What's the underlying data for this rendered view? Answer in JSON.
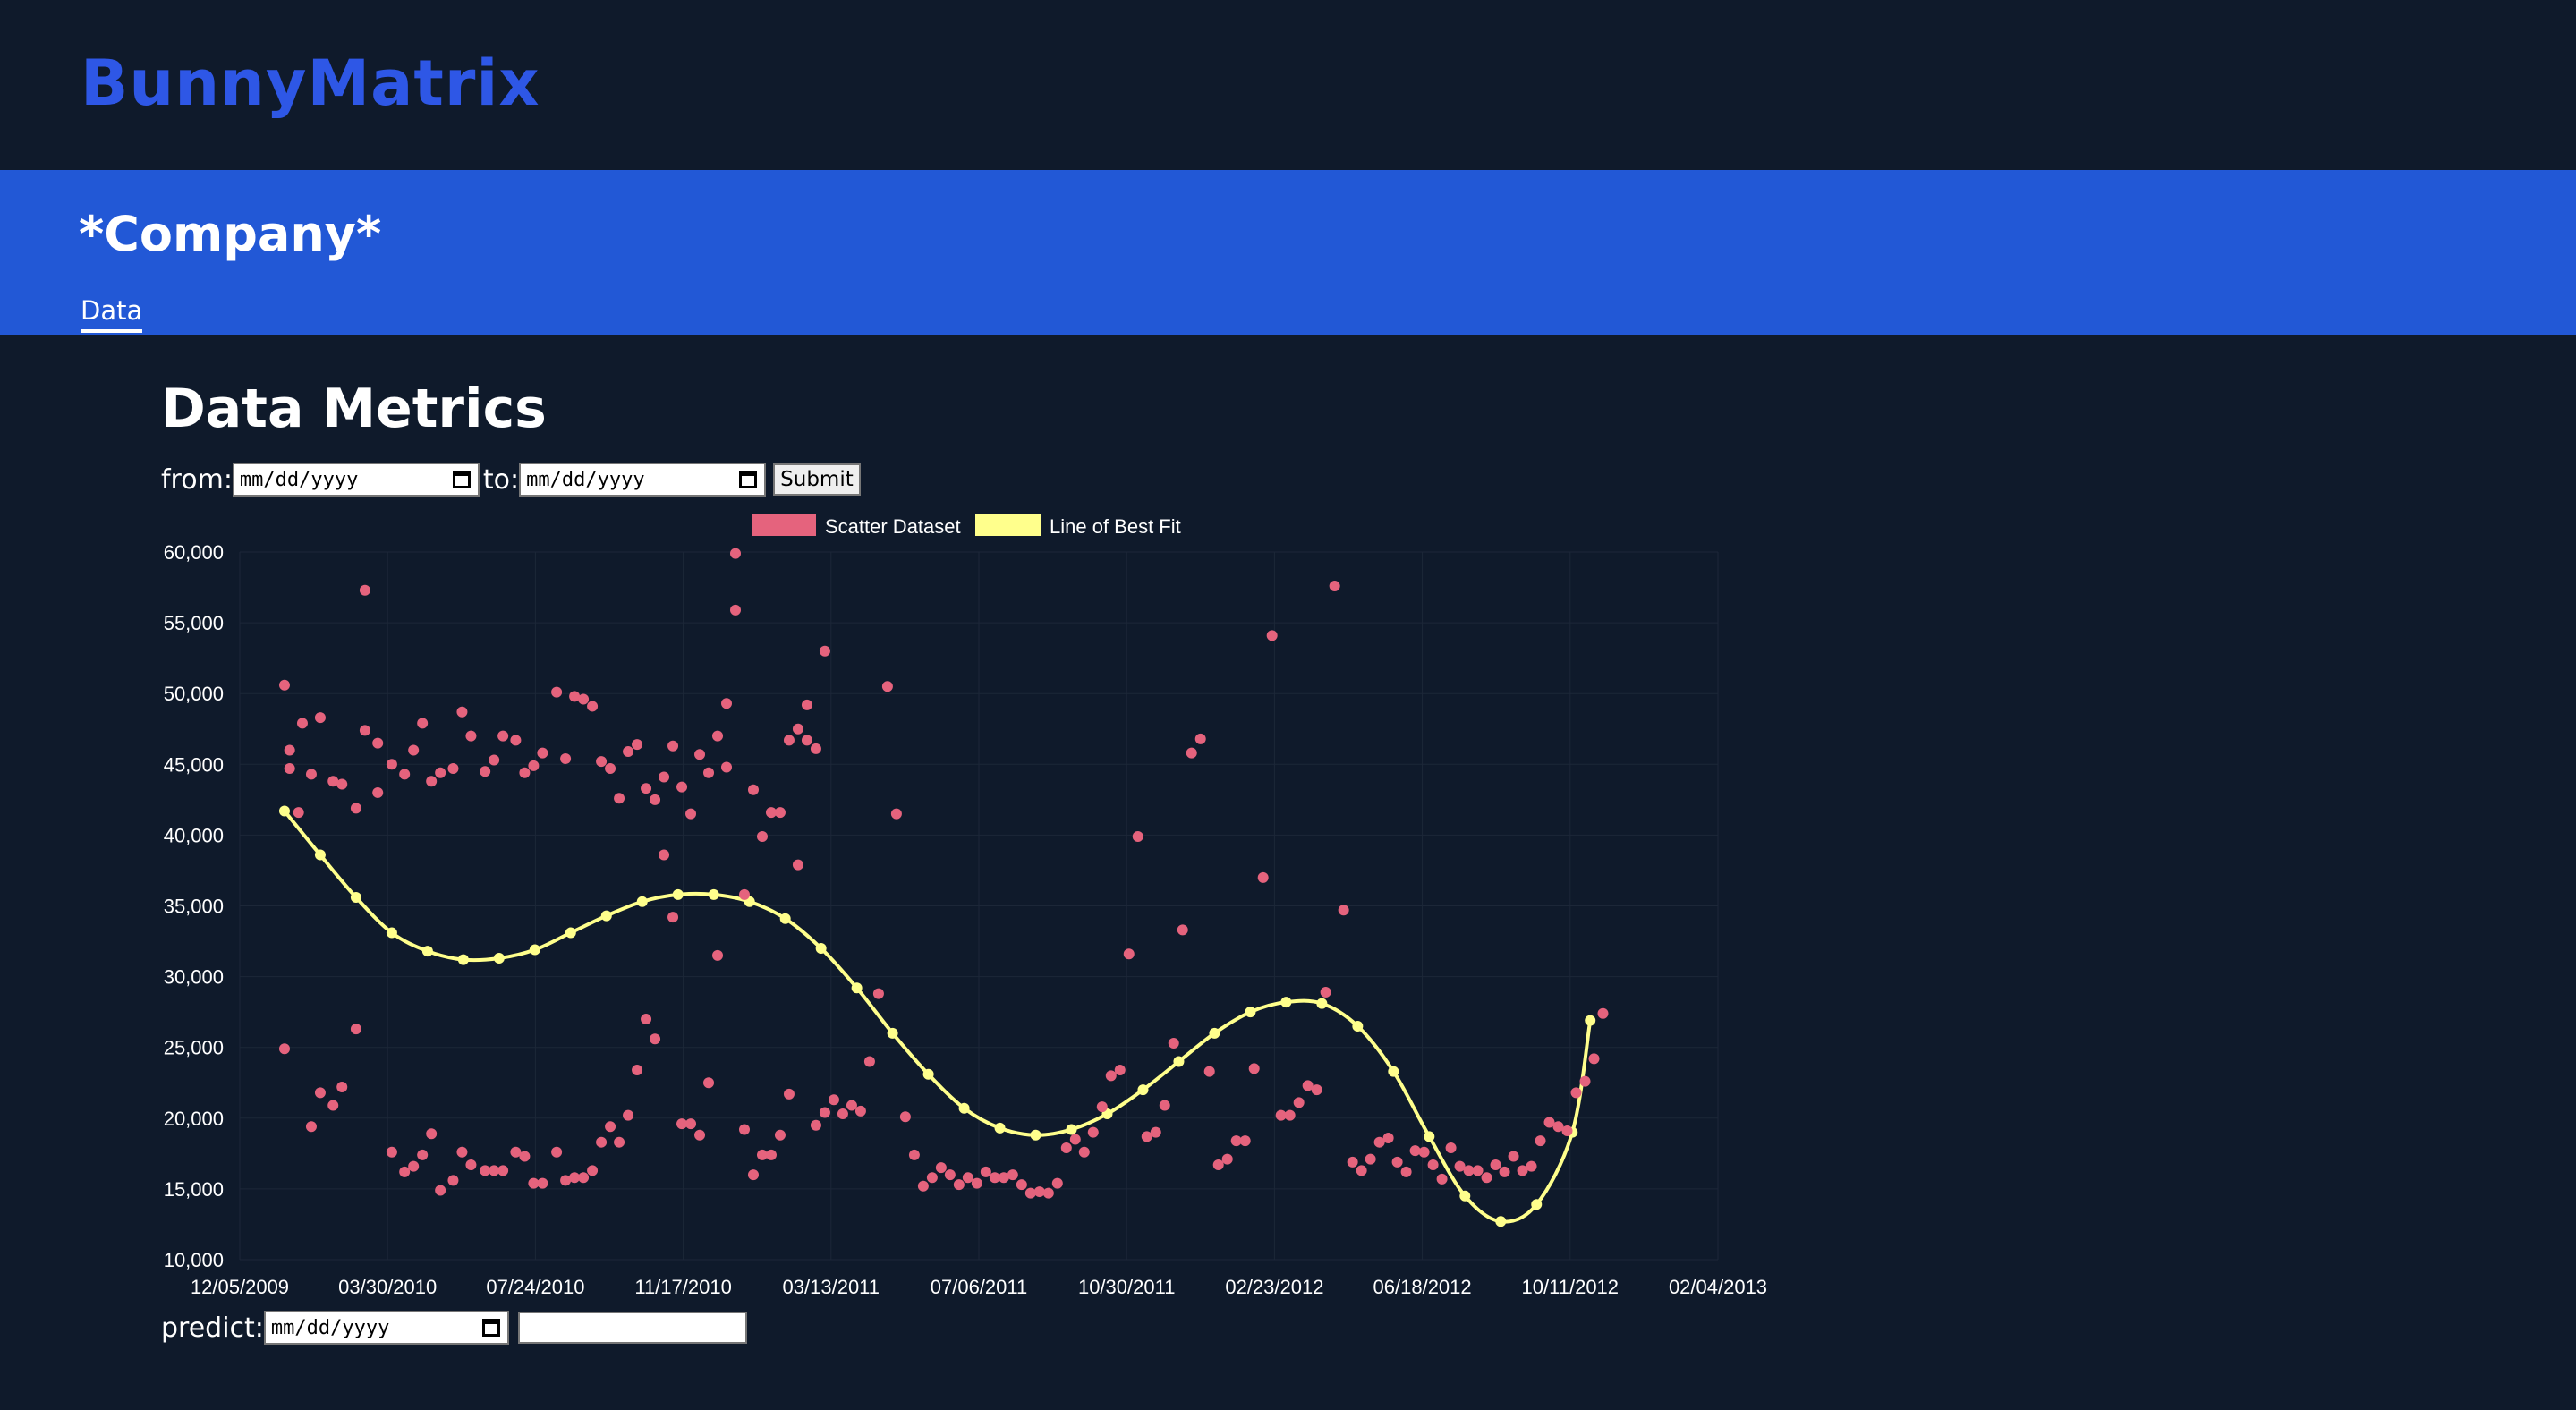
{
  "app": {
    "brand": "BunnyMatrix"
  },
  "banner": {
    "company": "*Company*",
    "tab_data": "Data"
  },
  "main": {
    "heading": "Data Metrics",
    "from_label": "from:",
    "to_label": "to:",
    "date_placeholder": "mm/dd/yyyy",
    "submit_label": "Submit",
    "predict_label": "predict:",
    "predict_value": ""
  },
  "icons": {
    "calendar": "calendar-icon"
  },
  "colors": {
    "brand": "#2e57e6",
    "banner": "#2258d6",
    "background": "#0f1a2b",
    "scatter": "#e5637d",
    "fit": "#ffff8c"
  },
  "chart_data": {
    "type": "scatter",
    "legend": {
      "position": "top-center",
      "entries": [
        "Scatter Dataset",
        "Line of Best Fit"
      ]
    },
    "x_axis": {
      "type": "date",
      "ticks": [
        "12/05/2009",
        "03/30/2010",
        "07/24/2010",
        "11/17/2010",
        "03/13/2011",
        "07/06/2011",
        "10/30/2011",
        "02/23/2012",
        "06/18/2012",
        "10/11/2012",
        "02/04/2013"
      ],
      "range": [
        "2009-12-05",
        "2013-02-04"
      ]
    },
    "y_axis": {
      "ticks": [
        "10,000",
        "15,000",
        "20,000",
        "25,000",
        "30,000",
        "35,000",
        "40,000",
        "45,000",
        "50,000",
        "55,000",
        "60,000"
      ],
      "range": [
        10000,
        60000
      ]
    },
    "grid": true,
    "series": [
      {
        "name": "Scatter Dataset",
        "color": "#e5637d",
        "points": [
          [
            "2010-01-09",
            50600
          ],
          [
            "2010-01-09",
            24900
          ],
          [
            "2010-01-13",
            46000
          ],
          [
            "2010-01-13",
            44700
          ],
          [
            "2010-01-20",
            41600
          ],
          [
            "2010-01-23",
            47900
          ],
          [
            "2010-01-30",
            44300
          ],
          [
            "2010-01-30",
            19400
          ],
          [
            "2010-02-06",
            48300
          ],
          [
            "2010-02-06",
            21800
          ],
          [
            "2010-02-16",
            43800
          ],
          [
            "2010-02-16",
            20900
          ],
          [
            "2010-02-23",
            43600
          ],
          [
            "2010-02-23",
            22200
          ],
          [
            "2010-03-06",
            41900
          ],
          [
            "2010-03-06",
            26300
          ],
          [
            "2010-03-13",
            47400
          ],
          [
            "2010-03-13",
            57300
          ],
          [
            "2010-03-23",
            46500
          ],
          [
            "2010-03-23",
            43000
          ],
          [
            "2010-04-03",
            45000
          ],
          [
            "2010-04-03",
            17600
          ],
          [
            "2010-04-13",
            44300
          ],
          [
            "2010-04-13",
            16200
          ],
          [
            "2010-04-20",
            46000
          ],
          [
            "2010-04-20",
            16600
          ],
          [
            "2010-04-27",
            47900
          ],
          [
            "2010-04-27",
            17400
          ],
          [
            "2010-05-04",
            43800
          ],
          [
            "2010-05-04",
            18900
          ],
          [
            "2010-05-11",
            44400
          ],
          [
            "2010-05-11",
            14900
          ],
          [
            "2010-05-21",
            44700
          ],
          [
            "2010-05-21",
            15600
          ],
          [
            "2010-05-28",
            48700
          ],
          [
            "2010-05-28",
            17600
          ],
          [
            "2010-06-04",
            47000
          ],
          [
            "2010-06-04",
            16700
          ],
          [
            "2010-06-15",
            44500
          ],
          [
            "2010-06-15",
            16300
          ],
          [
            "2010-06-22",
            45300
          ],
          [
            "2010-06-22",
            16300
          ],
          [
            "2010-06-29",
            47000
          ],
          [
            "2010-06-29",
            16300
          ],
          [
            "2010-07-09",
            46700
          ],
          [
            "2010-07-09",
            17600
          ],
          [
            "2010-07-16",
            44400
          ],
          [
            "2010-07-16",
            17300
          ],
          [
            "2010-07-23",
            44900
          ],
          [
            "2010-07-23",
            15400
          ],
          [
            "2010-07-30",
            45800
          ],
          [
            "2010-07-30",
            15400
          ],
          [
            "2010-08-10",
            50100
          ],
          [
            "2010-08-10",
            17600
          ],
          [
            "2010-08-17",
            45400
          ],
          [
            "2010-08-17",
            15600
          ],
          [
            "2010-08-24",
            49800
          ],
          [
            "2010-08-24",
            15800
          ],
          [
            "2010-08-31",
            49600
          ],
          [
            "2010-08-31",
            15800
          ],
          [
            "2010-09-07",
            49100
          ],
          [
            "2010-09-07",
            16300
          ],
          [
            "2010-09-14",
            45200
          ],
          [
            "2010-09-14",
            18300
          ],
          [
            "2010-09-21",
            44700
          ],
          [
            "2010-09-21",
            19400
          ],
          [
            "2010-09-28",
            42600
          ],
          [
            "2010-09-28",
            18300
          ],
          [
            "2010-10-05",
            45900
          ],
          [
            "2010-10-05",
            20200
          ],
          [
            "2010-10-12",
            46400
          ],
          [
            "2010-10-12",
            23400
          ],
          [
            "2010-10-19",
            43300
          ],
          [
            "2010-10-19",
            27000
          ],
          [
            "2010-10-26",
            42500
          ],
          [
            "2010-10-26",
            25600
          ],
          [
            "2010-11-02",
            44100
          ],
          [
            "2010-11-02",
            38600
          ],
          [
            "2010-11-09",
            46300
          ],
          [
            "2010-11-09",
            34200
          ],
          [
            "2010-11-16",
            43400
          ],
          [
            "2010-11-16",
            19600
          ],
          [
            "2010-11-23",
            41500
          ],
          [
            "2010-11-23",
            19600
          ],
          [
            "2010-11-30",
            45700
          ],
          [
            "2010-11-30",
            18800
          ],
          [
            "2010-12-07",
            44400
          ],
          [
            "2010-12-07",
            22500
          ],
          [
            "2010-12-14",
            47000
          ],
          [
            "2010-12-14",
            31500
          ],
          [
            "2010-12-21",
            49300
          ],
          [
            "2010-12-21",
            44800
          ],
          [
            "2010-12-28",
            55900
          ],
          [
            "2010-12-28",
            59900
          ],
          [
            "2011-01-04",
            35800
          ],
          [
            "2011-01-04",
            19200
          ],
          [
            "2011-01-11",
            43200
          ],
          [
            "2011-01-11",
            16000
          ],
          [
            "2011-01-18",
            39900
          ],
          [
            "2011-01-18",
            17400
          ],
          [
            "2011-01-25",
            41600
          ],
          [
            "2011-01-25",
            17400
          ],
          [
            "2011-02-01",
            41600
          ],
          [
            "2011-02-01",
            18800
          ],
          [
            "2011-02-08",
            46700
          ],
          [
            "2011-02-08",
            21700
          ],
          [
            "2011-02-15",
            47500
          ],
          [
            "2011-02-15",
            37900
          ],
          [
            "2011-02-22",
            46700
          ],
          [
            "2011-02-22",
            49200
          ],
          [
            "2011-03-01",
            46100
          ],
          [
            "2011-03-01",
            19500
          ],
          [
            "2011-03-08",
            53000
          ],
          [
            "2011-03-08",
            20400
          ],
          [
            "2011-03-15",
            21300
          ],
          [
            "2011-03-22",
            20300
          ],
          [
            "2011-03-29",
            20900
          ],
          [
            "2011-04-05",
            20500
          ],
          [
            "2011-04-12",
            24000
          ],
          [
            "2011-04-19",
            28800
          ],
          [
            "2011-04-26",
            50500
          ],
          [
            "2011-05-03",
            41500
          ],
          [
            "2011-05-10",
            20100
          ],
          [
            "2011-05-17",
            17400
          ],
          [
            "2011-05-24",
            15200
          ],
          [
            "2011-05-31",
            15800
          ],
          [
            "2011-06-07",
            16500
          ],
          [
            "2011-06-14",
            16000
          ],
          [
            "2011-06-21",
            15300
          ],
          [
            "2011-06-28",
            15800
          ],
          [
            "2011-07-05",
            15400
          ],
          [
            "2011-07-12",
            16200
          ],
          [
            "2011-07-19",
            15800
          ],
          [
            "2011-07-26",
            15800
          ],
          [
            "2011-08-02",
            16000
          ],
          [
            "2011-08-09",
            15300
          ],
          [
            "2011-08-16",
            14700
          ],
          [
            "2011-08-23",
            14800
          ],
          [
            "2011-08-30",
            14700
          ],
          [
            "2011-09-06",
            15400
          ],
          [
            "2011-09-13",
            17900
          ],
          [
            "2011-09-20",
            18500
          ],
          [
            "2011-09-27",
            17600
          ],
          [
            "2011-10-04",
            19000
          ],
          [
            "2011-10-11",
            20800
          ],
          [
            "2011-10-18",
            23000
          ],
          [
            "2011-10-25",
            23400
          ],
          [
            "2011-11-01",
            31600
          ],
          [
            "2011-11-08",
            39900
          ],
          [
            "2011-11-15",
            18700
          ],
          [
            "2011-11-22",
            19000
          ],
          [
            "2011-11-29",
            20900
          ],
          [
            "2011-12-06",
            25300
          ],
          [
            "2011-12-13",
            33300
          ],
          [
            "2011-12-20",
            45800
          ],
          [
            "2011-12-27",
            46800
          ],
          [
            "2012-01-03",
            23300
          ],
          [
            "2012-01-10",
            16700
          ],
          [
            "2012-01-17",
            17100
          ],
          [
            "2012-01-24",
            18400
          ],
          [
            "2012-01-31",
            18400
          ],
          [
            "2012-02-07",
            23500
          ],
          [
            "2012-02-14",
            37000
          ],
          [
            "2012-02-21",
            54100
          ],
          [
            "2012-02-28",
            20200
          ],
          [
            "2012-03-06",
            20200
          ],
          [
            "2012-03-13",
            21100
          ],
          [
            "2012-03-20",
            22300
          ],
          [
            "2012-03-27",
            22000
          ],
          [
            "2012-04-03",
            28900
          ],
          [
            "2012-04-10",
            57600
          ],
          [
            "2012-04-17",
            34700
          ],
          [
            "2012-04-24",
            16900
          ],
          [
            "2012-05-01",
            16300
          ],
          [
            "2012-05-08",
            17100
          ],
          [
            "2012-05-15",
            18300
          ],
          [
            "2012-05-22",
            18600
          ],
          [
            "2012-05-29",
            16900
          ],
          [
            "2012-06-05",
            16200
          ],
          [
            "2012-06-12",
            17700
          ],
          [
            "2012-06-19",
            17600
          ],
          [
            "2012-06-26",
            16700
          ],
          [
            "2012-07-03",
            15700
          ],
          [
            "2012-07-10",
            17900
          ],
          [
            "2012-07-17",
            16600
          ],
          [
            "2012-07-24",
            16300
          ],
          [
            "2012-07-31",
            16300
          ],
          [
            "2012-08-07",
            15800
          ],
          [
            "2012-08-14",
            16700
          ],
          [
            "2012-08-21",
            16200
          ],
          [
            "2012-08-28",
            17300
          ],
          [
            "2012-09-04",
            16300
          ],
          [
            "2012-09-11",
            16600
          ],
          [
            "2012-09-18",
            18400
          ],
          [
            "2012-09-25",
            19700
          ],
          [
            "2012-10-02",
            19400
          ],
          [
            "2012-10-09",
            19100
          ],
          [
            "2012-10-16",
            21800
          ],
          [
            "2012-10-23",
            22600
          ],
          [
            "2012-10-30",
            24200
          ],
          [
            "2012-11-06",
            27400
          ]
        ]
      },
      {
        "name": "Line of Best Fit",
        "color": "#ffff8c",
        "points": [
          [
            "2010-01-09",
            41700
          ],
          [
            "2010-02-06",
            38600
          ],
          [
            "2010-03-06",
            35600
          ],
          [
            "2010-04-03",
            33100
          ],
          [
            "2010-05-01",
            31800
          ],
          [
            "2010-05-29",
            31200
          ],
          [
            "2010-06-26",
            31300
          ],
          [
            "2010-07-24",
            31900
          ],
          [
            "2010-08-21",
            33100
          ],
          [
            "2010-09-18",
            34300
          ],
          [
            "2010-10-16",
            35300
          ],
          [
            "2010-11-13",
            35800
          ],
          [
            "2010-12-11",
            35800
          ],
          [
            "2011-01-08",
            35300
          ],
          [
            "2011-02-05",
            34100
          ],
          [
            "2011-03-05",
            32000
          ],
          [
            "2011-04-02",
            29200
          ],
          [
            "2011-04-30",
            26000
          ],
          [
            "2011-05-28",
            23100
          ],
          [
            "2011-06-25",
            20700
          ],
          [
            "2011-07-23",
            19300
          ],
          [
            "2011-08-20",
            18800
          ],
          [
            "2011-09-17",
            19200
          ],
          [
            "2011-10-15",
            20300
          ],
          [
            "2011-11-12",
            22000
          ],
          [
            "2011-12-10",
            24000
          ],
          [
            "2012-01-07",
            26000
          ],
          [
            "2012-02-04",
            27500
          ],
          [
            "2012-03-03",
            28200
          ],
          [
            "2012-03-31",
            28100
          ],
          [
            "2012-04-28",
            26500
          ],
          [
            "2012-05-26",
            23300
          ],
          [
            "2012-06-23",
            18700
          ],
          [
            "2012-07-21",
            14500
          ],
          [
            "2012-08-18",
            12700
          ],
          [
            "2012-09-15",
            13900
          ],
          [
            "2012-10-13",
            19000
          ],
          [
            "2012-10-27",
            26900
          ]
        ]
      }
    ]
  }
}
